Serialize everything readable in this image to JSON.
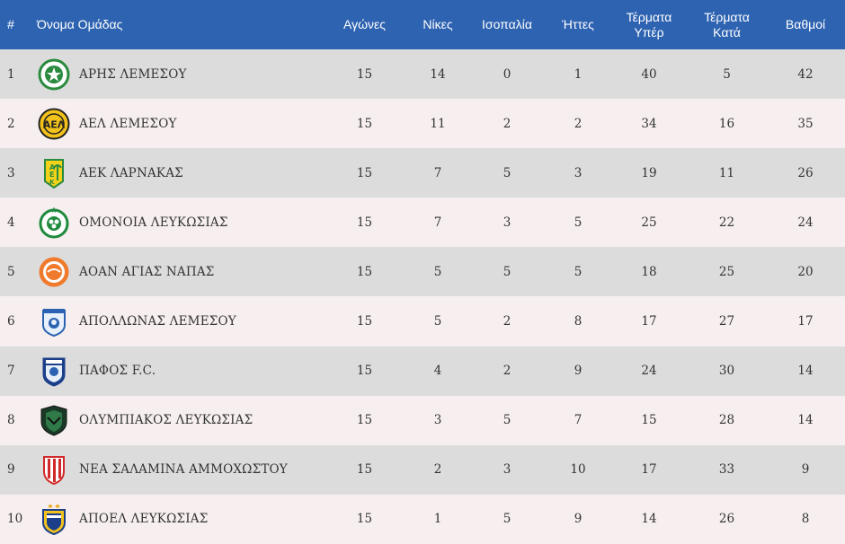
{
  "header": {
    "pos": "#",
    "team": "Όνομα Ομάδας",
    "played": "Αγώνες",
    "wins": "Νίκες",
    "draws": "Ισοπαλία",
    "losses": "Ήττες",
    "gf_line1": "Τέρματα",
    "gf_line2": "Υπέρ",
    "ga_line1": "Τέρματα",
    "ga_line2": "Κατά",
    "points": "Βαθμοί"
  },
  "rows": [
    {
      "pos": "1",
      "team": "ΑΡΗΣ ΛΕΜΕΣΟΥ",
      "played": "15",
      "wins": "14",
      "draws": "0",
      "losses": "1",
      "gf": "40",
      "ga": "5",
      "points": "42",
      "crest": "aris-crest-icon"
    },
    {
      "pos": "2",
      "team": "ΑΕΛ ΛΕΜΕΣΟΥ",
      "played": "15",
      "wins": "11",
      "draws": "2",
      "losses": "2",
      "gf": "34",
      "ga": "16",
      "points": "35",
      "crest": "ael-crest-icon"
    },
    {
      "pos": "3",
      "team": "ΑΕΚ ΛΑΡΝΑΚΑΣ",
      "played": "15",
      "wins": "7",
      "draws": "5",
      "losses": "3",
      "gf": "19",
      "ga": "11",
      "points": "26",
      "crest": "aek-crest-icon"
    },
    {
      "pos": "4",
      "team": "ΟΜΟΝΟΙΑ ΛΕΥΚΩΣΙΑΣ",
      "played": "15",
      "wins": "7",
      "draws": "3",
      "losses": "5",
      "gf": "25",
      "ga": "22",
      "points": "24",
      "crest": "omonoia-crest-icon"
    },
    {
      "pos": "5",
      "team": "ΑΟΑΝ ΑΓΙΑΣ ΝΑΠΑΣ",
      "played": "15",
      "wins": "5",
      "draws": "5",
      "losses": "5",
      "gf": "18",
      "ga": "25",
      "points": "20",
      "crest": "aoan-crest-icon"
    },
    {
      "pos": "6",
      "team": "ΑΠΟΛΛΩΝΑΣ ΛΕΜΕΣΟΥ",
      "played": "15",
      "wins": "5",
      "draws": "2",
      "losses": "8",
      "gf": "17",
      "ga": "27",
      "points": "17",
      "crest": "apollon-crest-icon"
    },
    {
      "pos": "7",
      "team": "ΠΑΦΟΣ F.C.",
      "played": "15",
      "wins": "4",
      "draws": "2",
      "losses": "9",
      "gf": "24",
      "ga": "30",
      "points": "14",
      "crest": "pafos-crest-icon"
    },
    {
      "pos": "8",
      "team": "ΟΛΥΜΠΙΑΚΟΣ ΛΕΥΚΩΣΙΑΣ",
      "played": "15",
      "wins": "3",
      "draws": "5",
      "losses": "7",
      "gf": "15",
      "ga": "28",
      "points": "14",
      "crest": "olympiakos-crest-icon"
    },
    {
      "pos": "9",
      "team": "ΝΕΑ ΣΑΛΑΜΙΝΑ ΑΜΜΟΧΩΣΤΟΥ",
      "played": "15",
      "wins": "2",
      "draws": "3",
      "losses": "10",
      "gf": "17",
      "ga": "33",
      "points": "9",
      "crest": "salamina-crest-icon"
    },
    {
      "pos": "10",
      "team": "ΑΠΟΕΛ ΛΕΥΚΩΣΙΑΣ",
      "played": "15",
      "wins": "1",
      "draws": "5",
      "losses": "9",
      "gf": "14",
      "ga": "26",
      "points": "8",
      "crest": "apoel-crest-icon"
    }
  ],
  "colors": {
    "header_bg": "#2e63b1",
    "row_odd": "#dcdcdc",
    "row_even": "#f7efef"
  }
}
